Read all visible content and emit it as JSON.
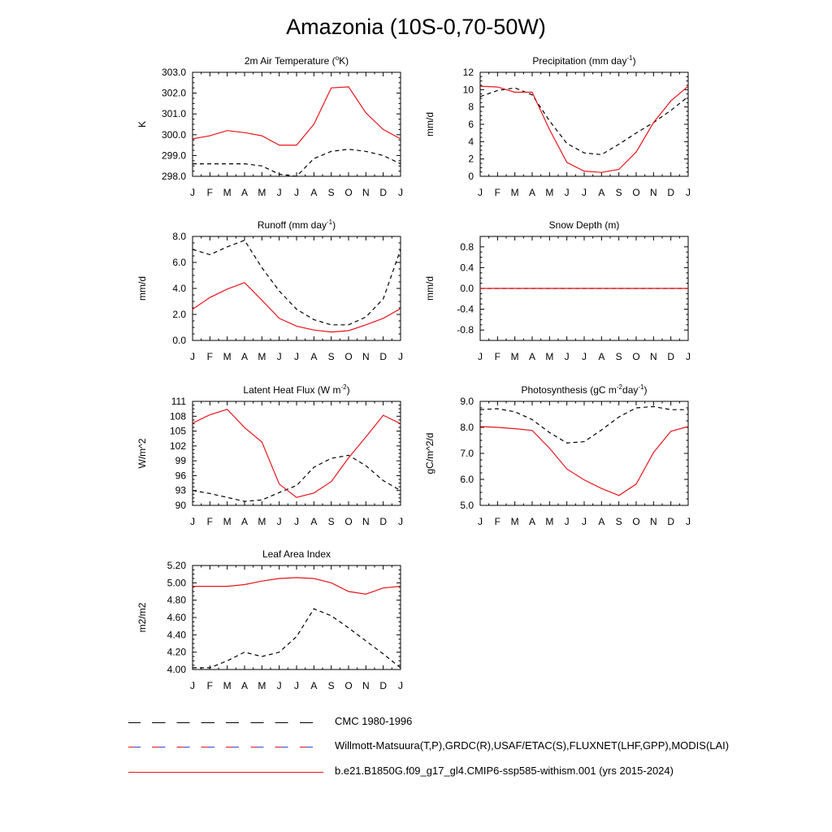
{
  "title": "Amazonia (10S-0,70-50W)",
  "months": [
    "J",
    "F",
    "M",
    "A",
    "M",
    "J",
    "J",
    "A",
    "S",
    "O",
    "N",
    "D",
    "J"
  ],
  "colors": {
    "model": "#e8141c",
    "obs": "#000000"
  },
  "legend": [
    {
      "label": "CMC 1980-1996",
      "style": "dash-black"
    },
    {
      "label": "Willmott-Matsuura(T,P),GRDC(R),USAF/ETAC(S),FLUXNET(LHF,GPP),MODIS(LAI)",
      "style": "dash-red-blue"
    },
    {
      "label": "b.e21.B1850G.f09_g17_gl4.CMIP6-ssp585-withism.001 (yrs 2015-2024)",
      "style": "solid-red"
    }
  ],
  "chart_data": [
    {
      "type": "line",
      "title": "2m Air Temperature (°K)",
      "title_parts": [
        "2m Air Temperature (",
        "o",
        "K)"
      ],
      "ylabel": "K",
      "ylim": [
        298.0,
        303.0
      ],
      "yticks": [
        "298.0",
        "299.0",
        "300.0",
        "301.0",
        "302.0",
        "303.0"
      ],
      "ytick_values": [
        298,
        299,
        300,
        301,
        302,
        303
      ],
      "series": [
        {
          "role": "obs",
          "values": [
            298.6,
            298.6,
            298.6,
            298.6,
            298.5,
            298.1,
            298.0,
            298.85,
            299.2,
            299.3,
            299.2,
            299.0,
            298.6
          ]
        },
        {
          "role": "model",
          "values": [
            299.8,
            299.95,
            300.2,
            300.1,
            299.95,
            299.5,
            299.5,
            300.5,
            302.25,
            302.3,
            301.05,
            300.25,
            299.8
          ]
        }
      ]
    },
    {
      "type": "line",
      "title": "Precipitation (mm day-1)",
      "title_parts": [
        "Precipitation (mm day",
        "-1",
        ")"
      ],
      "ylabel": "mm/d",
      "ylim": [
        0,
        12
      ],
      "yticks": [
        "0",
        "2",
        "4",
        "6",
        "8",
        "10",
        "12"
      ],
      "ytick_values": [
        0,
        2,
        4,
        6,
        8,
        10,
        12
      ],
      "series": [
        {
          "role": "obs",
          "values": [
            9.2,
            9.9,
            10.2,
            9.4,
            6.4,
            3.8,
            2.7,
            2.5,
            3.7,
            5.0,
            6.2,
            7.6,
            9.2
          ]
        },
        {
          "role": "model",
          "values": [
            10.4,
            10.3,
            9.7,
            9.7,
            5.4,
            1.6,
            0.6,
            0.45,
            0.8,
            2.8,
            6.2,
            8.7,
            10.4
          ]
        }
      ]
    },
    {
      "type": "line",
      "title": "Runoff (mm day-1)",
      "title_parts": [
        "Runoff (mm day",
        "-1",
        ")"
      ],
      "ylabel": "mm/d",
      "ylim": [
        0,
        8
      ],
      "yticks": [
        "0.0",
        "2.0",
        "4.0",
        "6.0",
        "8.0"
      ],
      "ytick_values": [
        0,
        2,
        4,
        6,
        8
      ],
      "series": [
        {
          "role": "obs",
          "values": [
            7.0,
            6.6,
            7.2,
            7.7,
            5.6,
            3.8,
            2.4,
            1.6,
            1.2,
            1.2,
            1.8,
            3.2,
            7.0
          ]
        },
        {
          "role": "model",
          "values": [
            2.4,
            3.3,
            3.95,
            4.45,
            3.1,
            1.7,
            1.1,
            0.8,
            0.65,
            0.75,
            1.2,
            1.7,
            2.45
          ]
        }
      ]
    },
    {
      "type": "line",
      "title": "Snow Depth (m)",
      "title_parts": [
        "Snow Depth (m)"
      ],
      "ylabel": "mm/d",
      "ylim": [
        -1.0,
        1.0
      ],
      "yticks": [
        "-0.8",
        "-0.4",
        "0.0",
        "0.4",
        "0.8"
      ],
      "ytick_values": [
        -0.8,
        -0.4,
        0,
        0.4,
        0.8
      ],
      "series": [
        {
          "role": "obs",
          "values": [
            0,
            0,
            0,
            0,
            0,
            0,
            0,
            0,
            0,
            0,
            0,
            0,
            0
          ]
        },
        {
          "role": "model",
          "values": [
            0,
            0,
            0,
            0,
            0,
            0,
            0,
            0,
            0,
            0,
            0,
            0,
            0
          ]
        }
      ]
    },
    {
      "type": "line",
      "title": "Latent Heat Flux (W m-2)",
      "title_parts": [
        "Latent Heat Flux (W m",
        "-2",
        ")"
      ],
      "ylabel": "W/m^2",
      "ylim": [
        90,
        111
      ],
      "yticks": [
        "90",
        "93",
        "96",
        "99",
        "102",
        "105",
        "108",
        "111"
      ],
      "ytick_values": [
        90,
        93,
        96,
        99,
        102,
        105,
        108,
        111
      ],
      "series": [
        {
          "role": "obs",
          "values": [
            93.0,
            92.4,
            91.6,
            90.8,
            91.1,
            92.6,
            94.0,
            97.7,
            99.5,
            100.1,
            98.0,
            95.0,
            93.0
          ]
        },
        {
          "role": "model",
          "values": [
            106.6,
            108.3,
            109.4,
            105.7,
            102.8,
            94.3,
            91.6,
            92.5,
            94.8,
            99.6,
            103.8,
            108.2,
            106.5
          ]
        }
      ]
    },
    {
      "type": "line",
      "title": "Photosynthesis (gC m-2day-1)",
      "title_parts": [
        "Photosynthesis (gC m",
        "-2",
        "day",
        "-1",
        ")"
      ],
      "ylabel": "gC/m^2/d",
      "ylim": [
        5.0,
        9.0
      ],
      "yticks": [
        "5.0",
        "6.0",
        "7.0",
        "8.0",
        "9.0"
      ],
      "ytick_values": [
        5,
        6,
        7,
        8,
        9
      ],
      "series": [
        {
          "role": "obs",
          "values": [
            8.68,
            8.72,
            8.6,
            8.3,
            7.8,
            7.4,
            7.45,
            7.9,
            8.4,
            8.75,
            8.8,
            8.68,
            8.68
          ]
        },
        {
          "role": "model",
          "values": [
            8.03,
            8.0,
            7.95,
            7.88,
            7.2,
            6.4,
            5.98,
            5.65,
            5.38,
            5.82,
            7.03,
            7.85,
            8.03
          ]
        }
      ]
    },
    {
      "type": "line",
      "title": "Leaf Area Index",
      "title_parts": [
        "Leaf Area Index"
      ],
      "ylabel": "m2/m2",
      "ylim": [
        4.0,
        5.2
      ],
      "yticks": [
        "4.00",
        "4.20",
        "4.40",
        "4.60",
        "4.80",
        "5.00",
        "5.20"
      ],
      "ytick_values": [
        4.0,
        4.2,
        4.4,
        4.6,
        4.8,
        5.0,
        5.2
      ],
      "series": [
        {
          "role": "obs",
          "values": [
            4.02,
            4.02,
            4.1,
            4.2,
            4.15,
            4.2,
            4.38,
            4.7,
            4.62,
            4.48,
            4.33,
            4.18,
            4.02
          ]
        },
        {
          "role": "model",
          "values": [
            4.96,
            4.96,
            4.96,
            4.98,
            5.02,
            5.05,
            5.06,
            5.05,
            5.0,
            4.9,
            4.87,
            4.94,
            4.96
          ]
        }
      ]
    }
  ]
}
